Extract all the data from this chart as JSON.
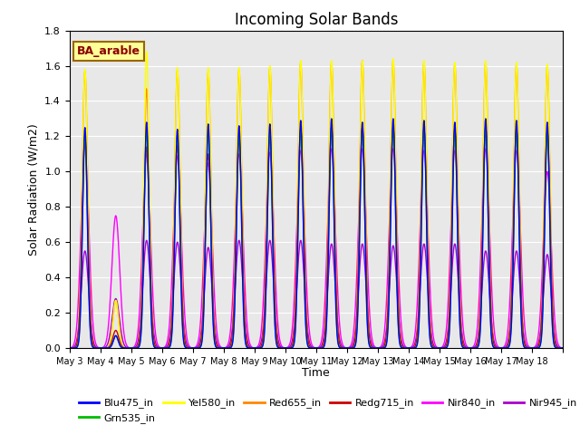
{
  "title": "Incoming Solar Bands",
  "xlabel": "Time",
  "ylabel": "Solar Radiation (W/m2)",
  "ylim": [
    0,
    1.8
  ],
  "annotation": "BA_arable",
  "x_tick_labels": [
    "May 3",
    "May 4",
    "May 5",
    "May 6",
    "May 7",
    "May 8",
    "May 9",
    "May 10",
    "May 11",
    "May 12",
    "May 13",
    "May 14",
    "May 15",
    "May 16",
    "May 17",
    "May 18"
  ],
  "series_colors": {
    "Blu475_in": "#0000ff",
    "Grn535_in": "#00bb00",
    "Yel580_in": "#ffff00",
    "Red655_in": "#ff8800",
    "Redg715_in": "#cc0000",
    "Nir840_in": "#ff00ff",
    "Nir945_in": "#aa00cc"
  },
  "peaks": {
    "Blu475_in": [
      1.25,
      0.07,
      1.28,
      1.24,
      1.27,
      1.26,
      1.27,
      1.29,
      1.3,
      1.28,
      1.3,
      1.29,
      1.28,
      1.3,
      1.29,
      1.28
    ],
    "Grn535_in": [
      1.2,
      0.07,
      1.23,
      1.21,
      1.22,
      1.21,
      1.22,
      1.24,
      1.25,
      1.24,
      1.25,
      1.24,
      1.23,
      1.25,
      1.24,
      1.23
    ],
    "Yel580_in": [
      1.58,
      0.27,
      1.68,
      1.59,
      1.59,
      1.59,
      1.6,
      1.63,
      1.63,
      1.63,
      1.64,
      1.63,
      1.62,
      1.63,
      1.62,
      1.61
    ],
    "Red655_in": [
      1.57,
      0.27,
      1.47,
      1.58,
      1.57,
      1.58,
      1.59,
      1.62,
      1.62,
      1.63,
      1.63,
      1.62,
      1.61,
      1.62,
      1.61,
      1.6
    ],
    "Redg715_in": [
      1.19,
      0.1,
      1.14,
      1.15,
      1.1,
      1.19,
      1.2,
      1.24,
      1.25,
      1.25,
      1.25,
      1.24,
      1.24,
      1.25,
      1.24,
      1.23
    ],
    "Nir840_in": [
      1.15,
      0.75,
      1.1,
      1.09,
      1.05,
      1.1,
      1.11,
      1.12,
      1.13,
      1.13,
      1.13,
      1.12,
      1.12,
      1.13,
      1.12,
      1.0
    ],
    "Nir945_in": [
      0.55,
      0.28,
      0.61,
      0.6,
      0.57,
      0.61,
      0.61,
      0.61,
      0.59,
      0.59,
      0.58,
      0.59,
      0.59,
      0.55,
      0.55,
      0.53
    ]
  },
  "widths": {
    "Blu475_in": 0.18,
    "Grn535_in": 0.19,
    "Yel580_in": 0.2,
    "Red655_in": 0.21,
    "Redg715_in": 0.22,
    "Nir840_in": 0.3,
    "Nir945_in": 0.28
  },
  "background_color": "#e8e8e8",
  "n_days": 16,
  "points_per_day": 200
}
